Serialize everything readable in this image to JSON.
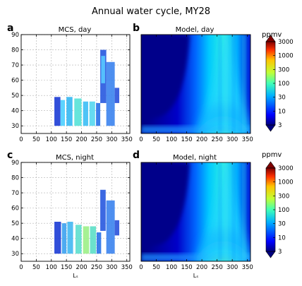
{
  "figure": {
    "title": "Annual water cycle, MY28",
    "colorbar_unit": "ppmv",
    "colorbar_ticks": [
      "3000",
      "1000",
      "300",
      "100",
      "30",
      "10",
      "3"
    ],
    "colors": {
      "background": "#00007f",
      "axis": "#000000",
      "grid": "#b0b0b0"
    }
  },
  "chart_data": [
    {
      "type": "heatmap",
      "panel_letter": "a",
      "title": "MCS, day",
      "xlabel": "",
      "ylabel": "",
      "xlim": [
        0,
        360
      ],
      "ylim": [
        25,
        90
      ],
      "xticks": [
        0,
        50,
        100,
        150,
        200,
        250,
        300,
        350
      ],
      "yticks": [
        30,
        40,
        50,
        60,
        70,
        80,
        90
      ],
      "grid": true,
      "color_scale": "log",
      "color_range": [
        3,
        3000
      ],
      "bands": [
        {
          "ls": [
            110,
            130
          ],
          "alt": [
            30,
            49
          ],
          "color": "#1f3fd6"
        },
        {
          "ls": [
            130,
            145
          ],
          "alt": [
            30,
            47
          ],
          "color": "#4fd0ff"
        },
        {
          "ls": [
            150,
            170
          ],
          "alt": [
            30,
            49
          ],
          "color": "#38b8f2"
        },
        {
          "ls": [
            176,
            200
          ],
          "alt": [
            30,
            48
          ],
          "color": "#59e3d8"
        },
        {
          "ls": [
            205,
            222
          ],
          "alt": [
            30,
            46
          ],
          "color": "#3fbff5"
        },
        {
          "ls": [
            226,
            245
          ],
          "alt": [
            30,
            46
          ],
          "color": "#58d8f0"
        },
        {
          "ls": [
            248,
            262
          ],
          "alt": [
            30,
            45
          ],
          "color": "#2b74e8"
        },
        {
          "ls": [
            262,
            282
          ],
          "alt": [
            45,
            80
          ],
          "color": "#2b5be0"
        },
        {
          "ls": [
            265,
            278
          ],
          "alt": [
            58,
            76
          ],
          "color": "#58c8ff"
        },
        {
          "ls": [
            282,
            310
          ],
          "alt": [
            30,
            72
          ],
          "color": "#3f86ef"
        },
        {
          "ls": [
            310,
            325
          ],
          "alt": [
            45,
            55
          ],
          "color": "#2f55db"
        }
      ]
    },
    {
      "type": "heatmap",
      "panel_letter": "b",
      "title": "Model, day",
      "xlabel": "",
      "ylabel": "",
      "xlim": [
        0,
        360
      ],
      "ylim": [
        25,
        90
      ],
      "xticks": [
        0,
        50,
        100,
        150,
        200,
        250,
        300,
        350
      ],
      "grid": false,
      "color_scale": "log",
      "color_range": [
        3,
        3000
      ],
      "peak": {
        "ls": 270,
        "alt": 28,
        "value_ppmv": 250
      }
    },
    {
      "type": "heatmap",
      "panel_letter": "c",
      "title": "MCS, night",
      "xlabel": "Lₛ",
      "ylabel": "",
      "xlim": [
        0,
        360
      ],
      "ylim": [
        25,
        90
      ],
      "xticks": [
        0,
        50,
        100,
        150,
        200,
        250,
        300,
        350
      ],
      "yticks": [
        30,
        40,
        50,
        60,
        70,
        80,
        90
      ],
      "grid": true,
      "color_scale": "log",
      "color_range": [
        3,
        3000
      ],
      "bands": [
        {
          "ls": [
            110,
            132
          ],
          "alt": [
            30,
            51
          ],
          "color": "#1f3fd6"
        },
        {
          "ls": [
            135,
            150
          ],
          "alt": [
            30,
            50
          ],
          "color": "#3fa3f0"
        },
        {
          "ls": [
            153,
            172
          ],
          "alt": [
            30,
            51
          ],
          "color": "#45b9f2"
        },
        {
          "ls": [
            180,
            200
          ],
          "alt": [
            30,
            49
          ],
          "color": "#60e0cf"
        },
        {
          "ls": [
            205,
            225
          ],
          "alt": [
            30,
            48
          ],
          "color": "#9ef08a"
        },
        {
          "ls": [
            228,
            248
          ],
          "alt": [
            30,
            48
          ],
          "color": "#5fe0c8"
        },
        {
          "ls": [
            250,
            265
          ],
          "alt": [
            30,
            44
          ],
          "color": "#2b74e8"
        },
        {
          "ls": [
            262,
            280
          ],
          "alt": [
            45,
            72
          ],
          "color": "#2b5be0"
        },
        {
          "ls": [
            282,
            310
          ],
          "alt": [
            30,
            65
          ],
          "color": "#3f86ef"
        },
        {
          "ls": [
            310,
            325
          ],
          "alt": [
            42,
            52
          ],
          "color": "#2f55db"
        }
      ]
    },
    {
      "type": "heatmap",
      "panel_letter": "d",
      "title": "Model, night",
      "xlabel": "Lₛ",
      "ylabel": "",
      "xlim": [
        0,
        360
      ],
      "ylim": [
        25,
        90
      ],
      "xticks": [
        0,
        50,
        100,
        150,
        200,
        250,
        300,
        350
      ],
      "grid": false,
      "color_scale": "log",
      "color_range": [
        3,
        3000
      ],
      "peak": {
        "ls": 270,
        "alt": 30,
        "value_ppmv": 200
      }
    }
  ]
}
